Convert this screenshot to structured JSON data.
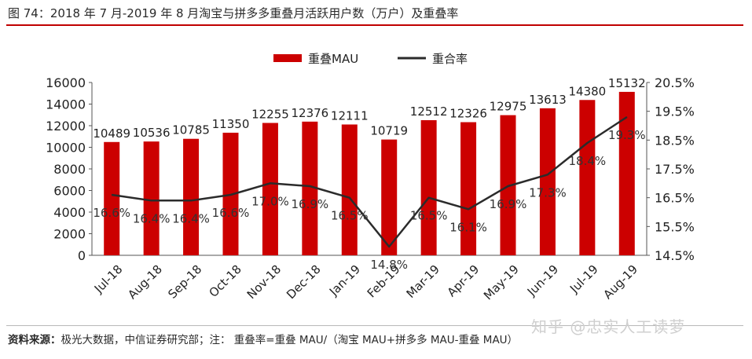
{
  "title": "图 74：2018 年 7 月-2019 年 8 月淘宝与拼多多重叠月活跃用户数（万户）及重叠率",
  "footer": {
    "source_label": "资料来源：",
    "source_text": "极光大数据，中信证券研究部；注：  重叠率=重叠 MAU/（淘宝 MAU+拼多多 MAU-重叠 MAU）"
  },
  "watermark": "知乎 @忠实人工读萝",
  "colors": {
    "bar": "#cc0000",
    "line": "#2b2b2b",
    "accent": "#c00000"
  },
  "chart_data": {
    "type": "bar",
    "categories": [
      "Jul-18",
      "Aug-18",
      "Sep-18",
      "Oct-18",
      "Nov-18",
      "Dec-18",
      "Jan-19",
      "Feb-19",
      "Mar-19",
      "Apr-19",
      "May-19",
      "Jun-19",
      "Jul-19",
      "Aug-19"
    ],
    "series": [
      {
        "name": "重叠MAU",
        "type": "bar",
        "axis": "left",
        "values": [
          10489,
          10536,
          10785,
          11350,
          12255,
          12376,
          12111,
          10719,
          12512,
          12326,
          12975,
          13613,
          14380,
          15132
        ]
      },
      {
        "name": "重合率",
        "type": "line",
        "axis": "right",
        "values": [
          16.6,
          16.4,
          16.4,
          16.6,
          17.0,
          16.9,
          16.5,
          14.8,
          16.5,
          16.1,
          16.9,
          17.3,
          18.4,
          19.3
        ],
        "labels": [
          "16.6%",
          "16.4%",
          "16.4%",
          "16.6%",
          "17.0%",
          "16.9%",
          "16.5%",
          "14.8%",
          "16.5%",
          "16.1%",
          "16.9%",
          "17.3%",
          "18.4%",
          "19.3%"
        ]
      }
    ],
    "y_left": {
      "min": 0,
      "max": 16000,
      "ticks": [
        0,
        2000,
        4000,
        6000,
        8000,
        10000,
        12000,
        14000,
        16000
      ]
    },
    "y_right": {
      "min": 14.5,
      "max": 20.5,
      "ticks": [
        "14.5%",
        "15.5%",
        "16.5%",
        "17.5%",
        "18.5%",
        "19.5%",
        "20.5%"
      ]
    },
    "legend_position": "top-center",
    "grid": false
  }
}
